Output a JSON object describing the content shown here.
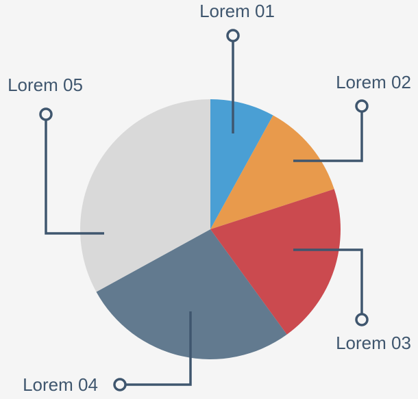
{
  "chart_data": {
    "type": "pie",
    "categories": [
      "Lorem 01",
      "Lorem 02",
      "Lorem 03",
      "Lorem 04",
      "Lorem 05"
    ],
    "values": [
      8,
      12,
      20,
      27,
      33
    ],
    "colors": [
      "#4a9fd4",
      "#e89a4c",
      "#cb4a4f",
      "#627a8f",
      "#d9d9d9"
    ]
  }
}
